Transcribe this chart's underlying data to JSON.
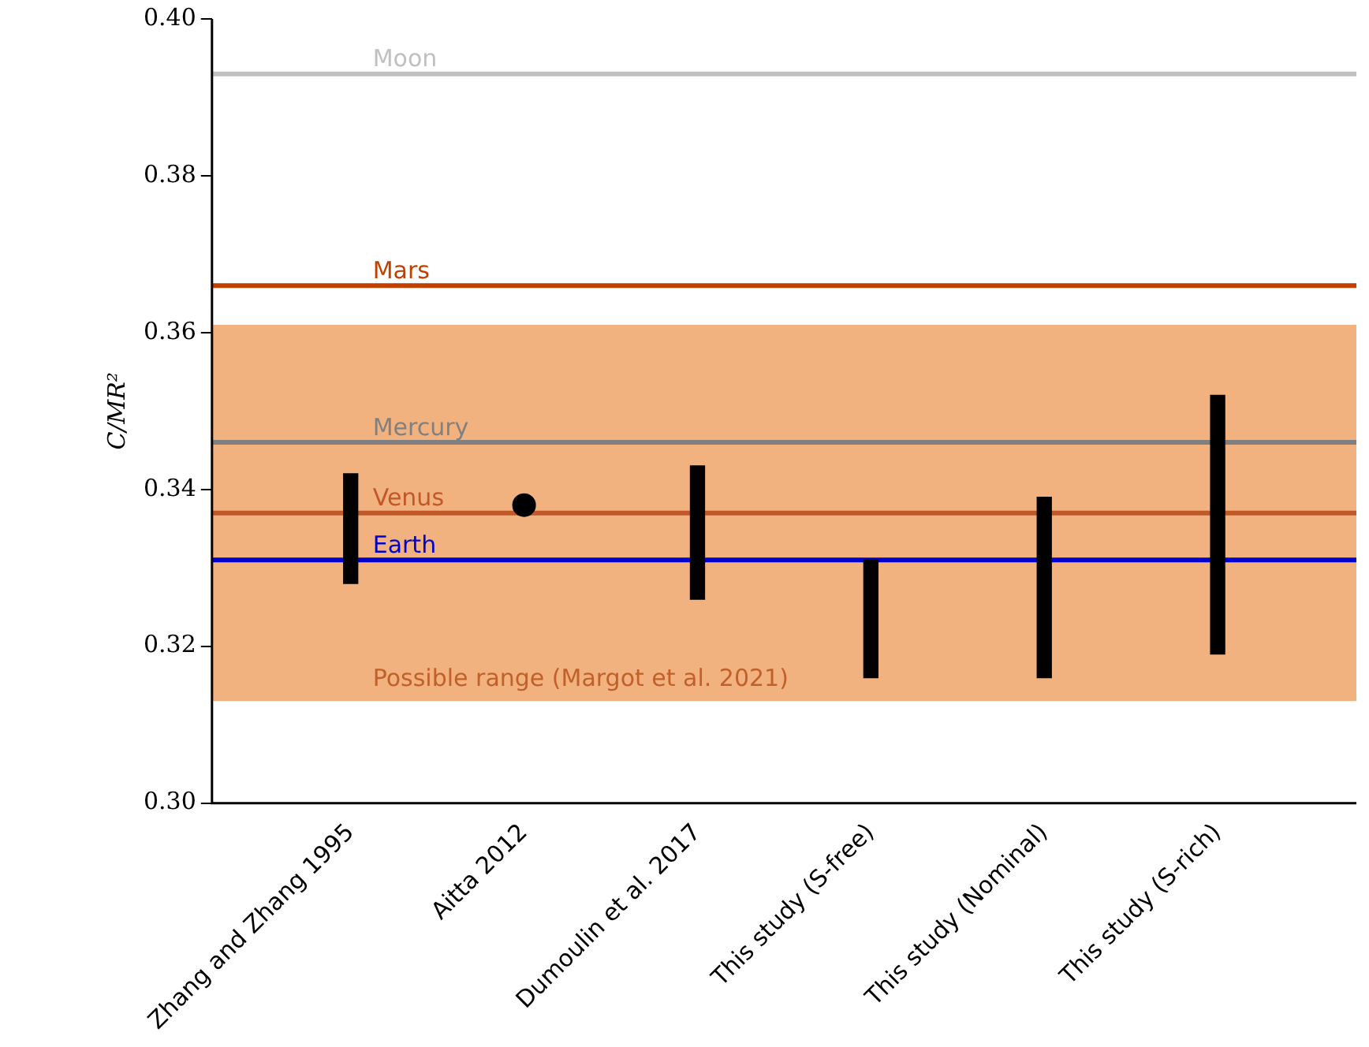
{
  "chart_data": {
    "type": "bar",
    "ylabel": "C/MR²",
    "categories": [
      "Zhang and Zhang 1995",
      "Aitta 2012",
      "Dumoulin et al. 2017",
      "This study (S-free)",
      "This study (Nominal)",
      "This study (S-rich)"
    ],
    "series": [
      {
        "color": "#000000",
        "base": [
          0.328,
          null,
          0.326,
          0.316,
          0.316,
          0.319
        ],
        "values": [
          0.014,
          null,
          0.017,
          0.015,
          0.023,
          0.033
        ]
      },
      {
        "type": "scatter",
        "color": "#000000",
        "x": [
          "Aitta 2012"
        ],
        "values": [
          0.338
        ],
        "marker": "circle"
      }
    ],
    "ylim": [
      0.3,
      0.4
    ],
    "yticks": [
      {
        "value": 0.3,
        "label": "0.30"
      },
      {
        "value": 0.32,
        "label": "0.32"
      },
      {
        "value": 0.34,
        "label": "0.34"
      },
      {
        "value": 0.36,
        "label": "0.36"
      },
      {
        "value": 0.38,
        "label": "0.38"
      },
      {
        "value": 0.4,
        "label": "0.40"
      }
    ],
    "ref_lines": [
      {
        "axis": "y",
        "value": 0.393,
        "label": "Moon",
        "color": "#c0c0c0"
      },
      {
        "axis": "y",
        "value": 0.366,
        "label": "Mars",
        "color": "#c04000"
      },
      {
        "axis": "y",
        "value": 0.346,
        "label": "Mercury",
        "color": "#808080"
      },
      {
        "axis": "y",
        "value": 0.337,
        "label": "Venus",
        "color": "#c0582a"
      },
      {
        "axis": "y",
        "value": 0.331,
        "label": "Earth",
        "color": "#0000cc"
      }
    ],
    "bands": [
      {
        "axis": "y",
        "from": 0.313,
        "to": 0.361,
        "label": "Possible range (Margot et al. 2021)",
        "color": "#f2b27f"
      }
    ],
    "grid": false,
    "legend": false
  }
}
